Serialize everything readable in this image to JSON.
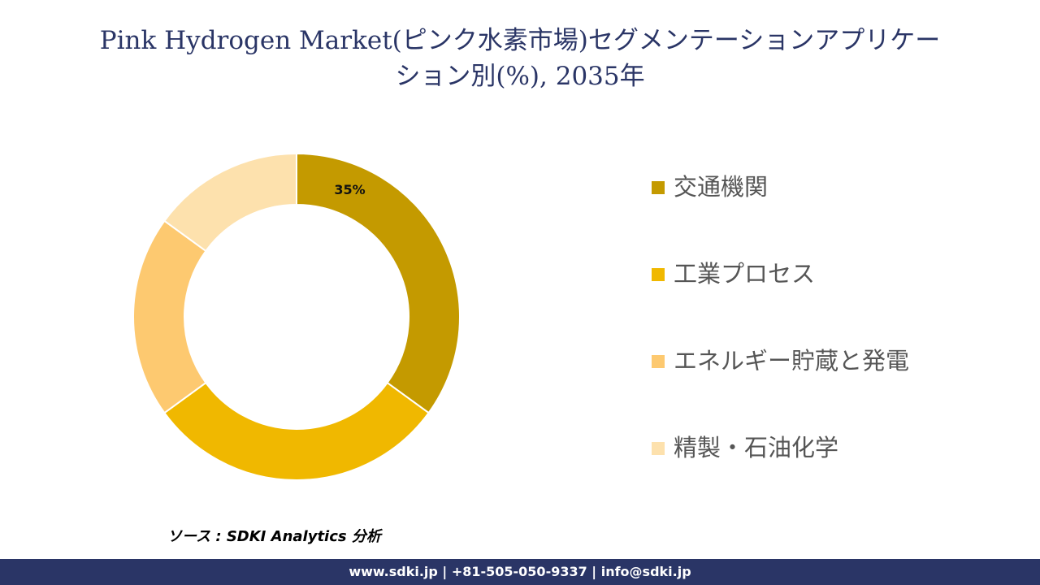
{
  "title": {
    "line1": "Pink Hydrogen Market(ピンク水素市場)セグメンテーションアプリケー",
    "line2": "ション別(%), 2035年"
  },
  "chart_data": {
    "type": "pie",
    "donut": true,
    "categories": [
      "交通機関",
      "工業プロセス",
      "エネルギー貯蔵と発電",
      "精製・石油化学"
    ],
    "values": [
      35,
      30,
      20,
      15
    ],
    "colors": [
      "#c49a00",
      "#f0b800",
      "#fdc970",
      "#fde1ad"
    ],
    "data_labels": [
      "35%",
      "",
      "",
      ""
    ],
    "legend_position": "right"
  },
  "source": "ソース : SDKI Analytics 分析",
  "footer": "www.sdki.jp | +81-505-050-9337 | info@sdki.jp"
}
